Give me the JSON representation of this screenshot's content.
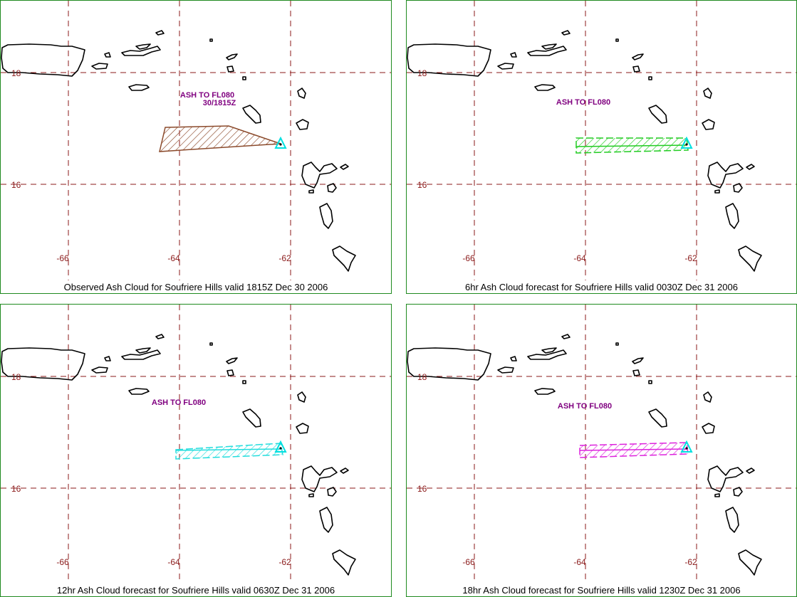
{
  "colors": {
    "border": "#1f8a1f",
    "grid": "#8b1a1a",
    "coast": "#000000",
    "annotation": "#800080",
    "volcano": "#00e0e0"
  },
  "panels": [
    {
      "caption": "Observed Ash Cloud for Soufriere  Hills valid 1815Z Dec 30 2006",
      "label_lines": [
        "ASH TO FL080",
        "30/1815Z"
      ],
      "cloud_color": "#8b4a2b",
      "cloud_style": "area"
    },
    {
      "caption": "6hr Ash Cloud forecast for Soufriere  Hills valid 0030Z Dec 31 2006",
      "label_lines": [
        "ASH TO FL080"
      ],
      "cloud_color": "#22cc22",
      "cloud_style": "band"
    },
    {
      "caption": "12hr Ash Cloud forecast for Soufriere  Hills valid 0630Z Dec 31 2006",
      "label_lines": [
        "ASH TO FL080"
      ],
      "cloud_color": "#22dddd",
      "cloud_style": "band"
    },
    {
      "caption": "18hr Ash Cloud forecast for Soufriere  Hills valid 1230Z Dec 31 2006",
      "label_lines": [
        "ASH TO FL080"
      ],
      "cloud_color": "#dd22dd",
      "cloud_style": "band"
    }
  ],
  "lat_labels": [
    "18",
    "16"
  ],
  "lon_labels": [
    "-66",
    "-64",
    "-62"
  ]
}
